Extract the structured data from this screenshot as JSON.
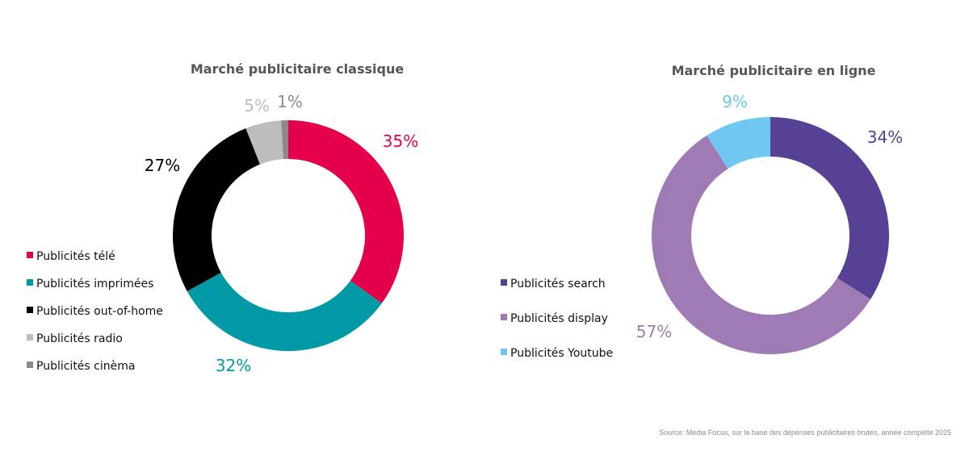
{
  "chart_data": [
    {
      "type": "pie",
      "donut": true,
      "title": "Marché publicitaire classique",
      "categories": [
        "Publicités télé",
        "Publicités imprimées",
        "Publicités out-of-home",
        "Publicités radio",
        "Publicités cinèma"
      ],
      "values": [
        35,
        32,
        27,
        5,
        1
      ],
      "value_labels": [
        "35%",
        "32%",
        "27%",
        "5%",
        "1%"
      ],
      "colors": [
        "#e4004b",
        "#009aa6",
        "#000000",
        "#bdbdbd",
        "#8a8a8a"
      ],
      "legend_placement": "left"
    },
    {
      "type": "pie",
      "donut": true,
      "title": "Marché publicitaire en ligne",
      "categories": [
        "Publicités search",
        "Publicités display",
        "Publicités Youtube"
      ],
      "values": [
        34,
        57,
        9
      ],
      "value_labels": [
        "34%",
        "57%",
        "9%"
      ],
      "colors": [
        "#574194",
        "#9e7bb5",
        "#70c8f0"
      ],
      "legend_placement": "left"
    }
  ],
  "source": "Source: Media Focus, sur la base des dépenses publicitaires brutes, année complète 2025"
}
